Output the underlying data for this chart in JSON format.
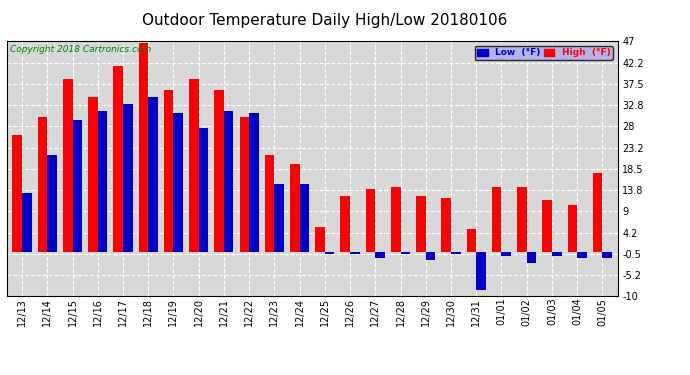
{
  "title": "Outdoor Temperature Daily High/Low 20180106",
  "copyright": "Copyright 2018 Cartronics.com",
  "legend_low": "Low  (°F)",
  "legend_high": "High  (°F)",
  "dates": [
    "12/13",
    "12/14",
    "12/15",
    "12/16",
    "12/17",
    "12/18",
    "12/19",
    "12/20",
    "12/21",
    "12/22",
    "12/23",
    "12/24",
    "12/25",
    "12/26",
    "12/27",
    "12/28",
    "12/29",
    "12/30",
    "12/31",
    "01/01",
    "01/02",
    "01/03",
    "01/04",
    "01/05"
  ],
  "high": [
    26.0,
    30.0,
    38.5,
    34.5,
    41.5,
    46.5,
    36.0,
    38.5,
    36.0,
    30.0,
    21.5,
    19.5,
    5.5,
    12.5,
    14.0,
    14.5,
    12.5,
    12.0,
    5.0,
    14.5,
    14.5,
    11.5,
    10.5,
    17.5
  ],
  "low": [
    13.0,
    21.5,
    29.5,
    31.5,
    33.0,
    34.5,
    31.0,
    27.5,
    31.5,
    31.0,
    15.0,
    15.0,
    -0.5,
    -0.5,
    -1.5,
    -0.5,
    -2.0,
    -0.5,
    -8.5,
    -1.0,
    -2.5,
    -1.0,
    -1.5,
    -1.5
  ],
  "ylim": [
    -10.0,
    47.0
  ],
  "yticks": [
    -10.0,
    -5.2,
    -0.5,
    4.2,
    9.0,
    13.8,
    18.5,
    23.2,
    28.0,
    32.8,
    37.5,
    42.2,
    47.0
  ],
  "bar_width": 0.38,
  "high_color": "#ff0000",
  "low_color": "#0000cc",
  "bg_color": "#ffffff",
  "plot_bg_color": "#d8d8d8",
  "grid_color": "#ffffff",
  "title_fontsize": 11,
  "tick_fontsize": 7,
  "copyright_fontsize": 6.5
}
